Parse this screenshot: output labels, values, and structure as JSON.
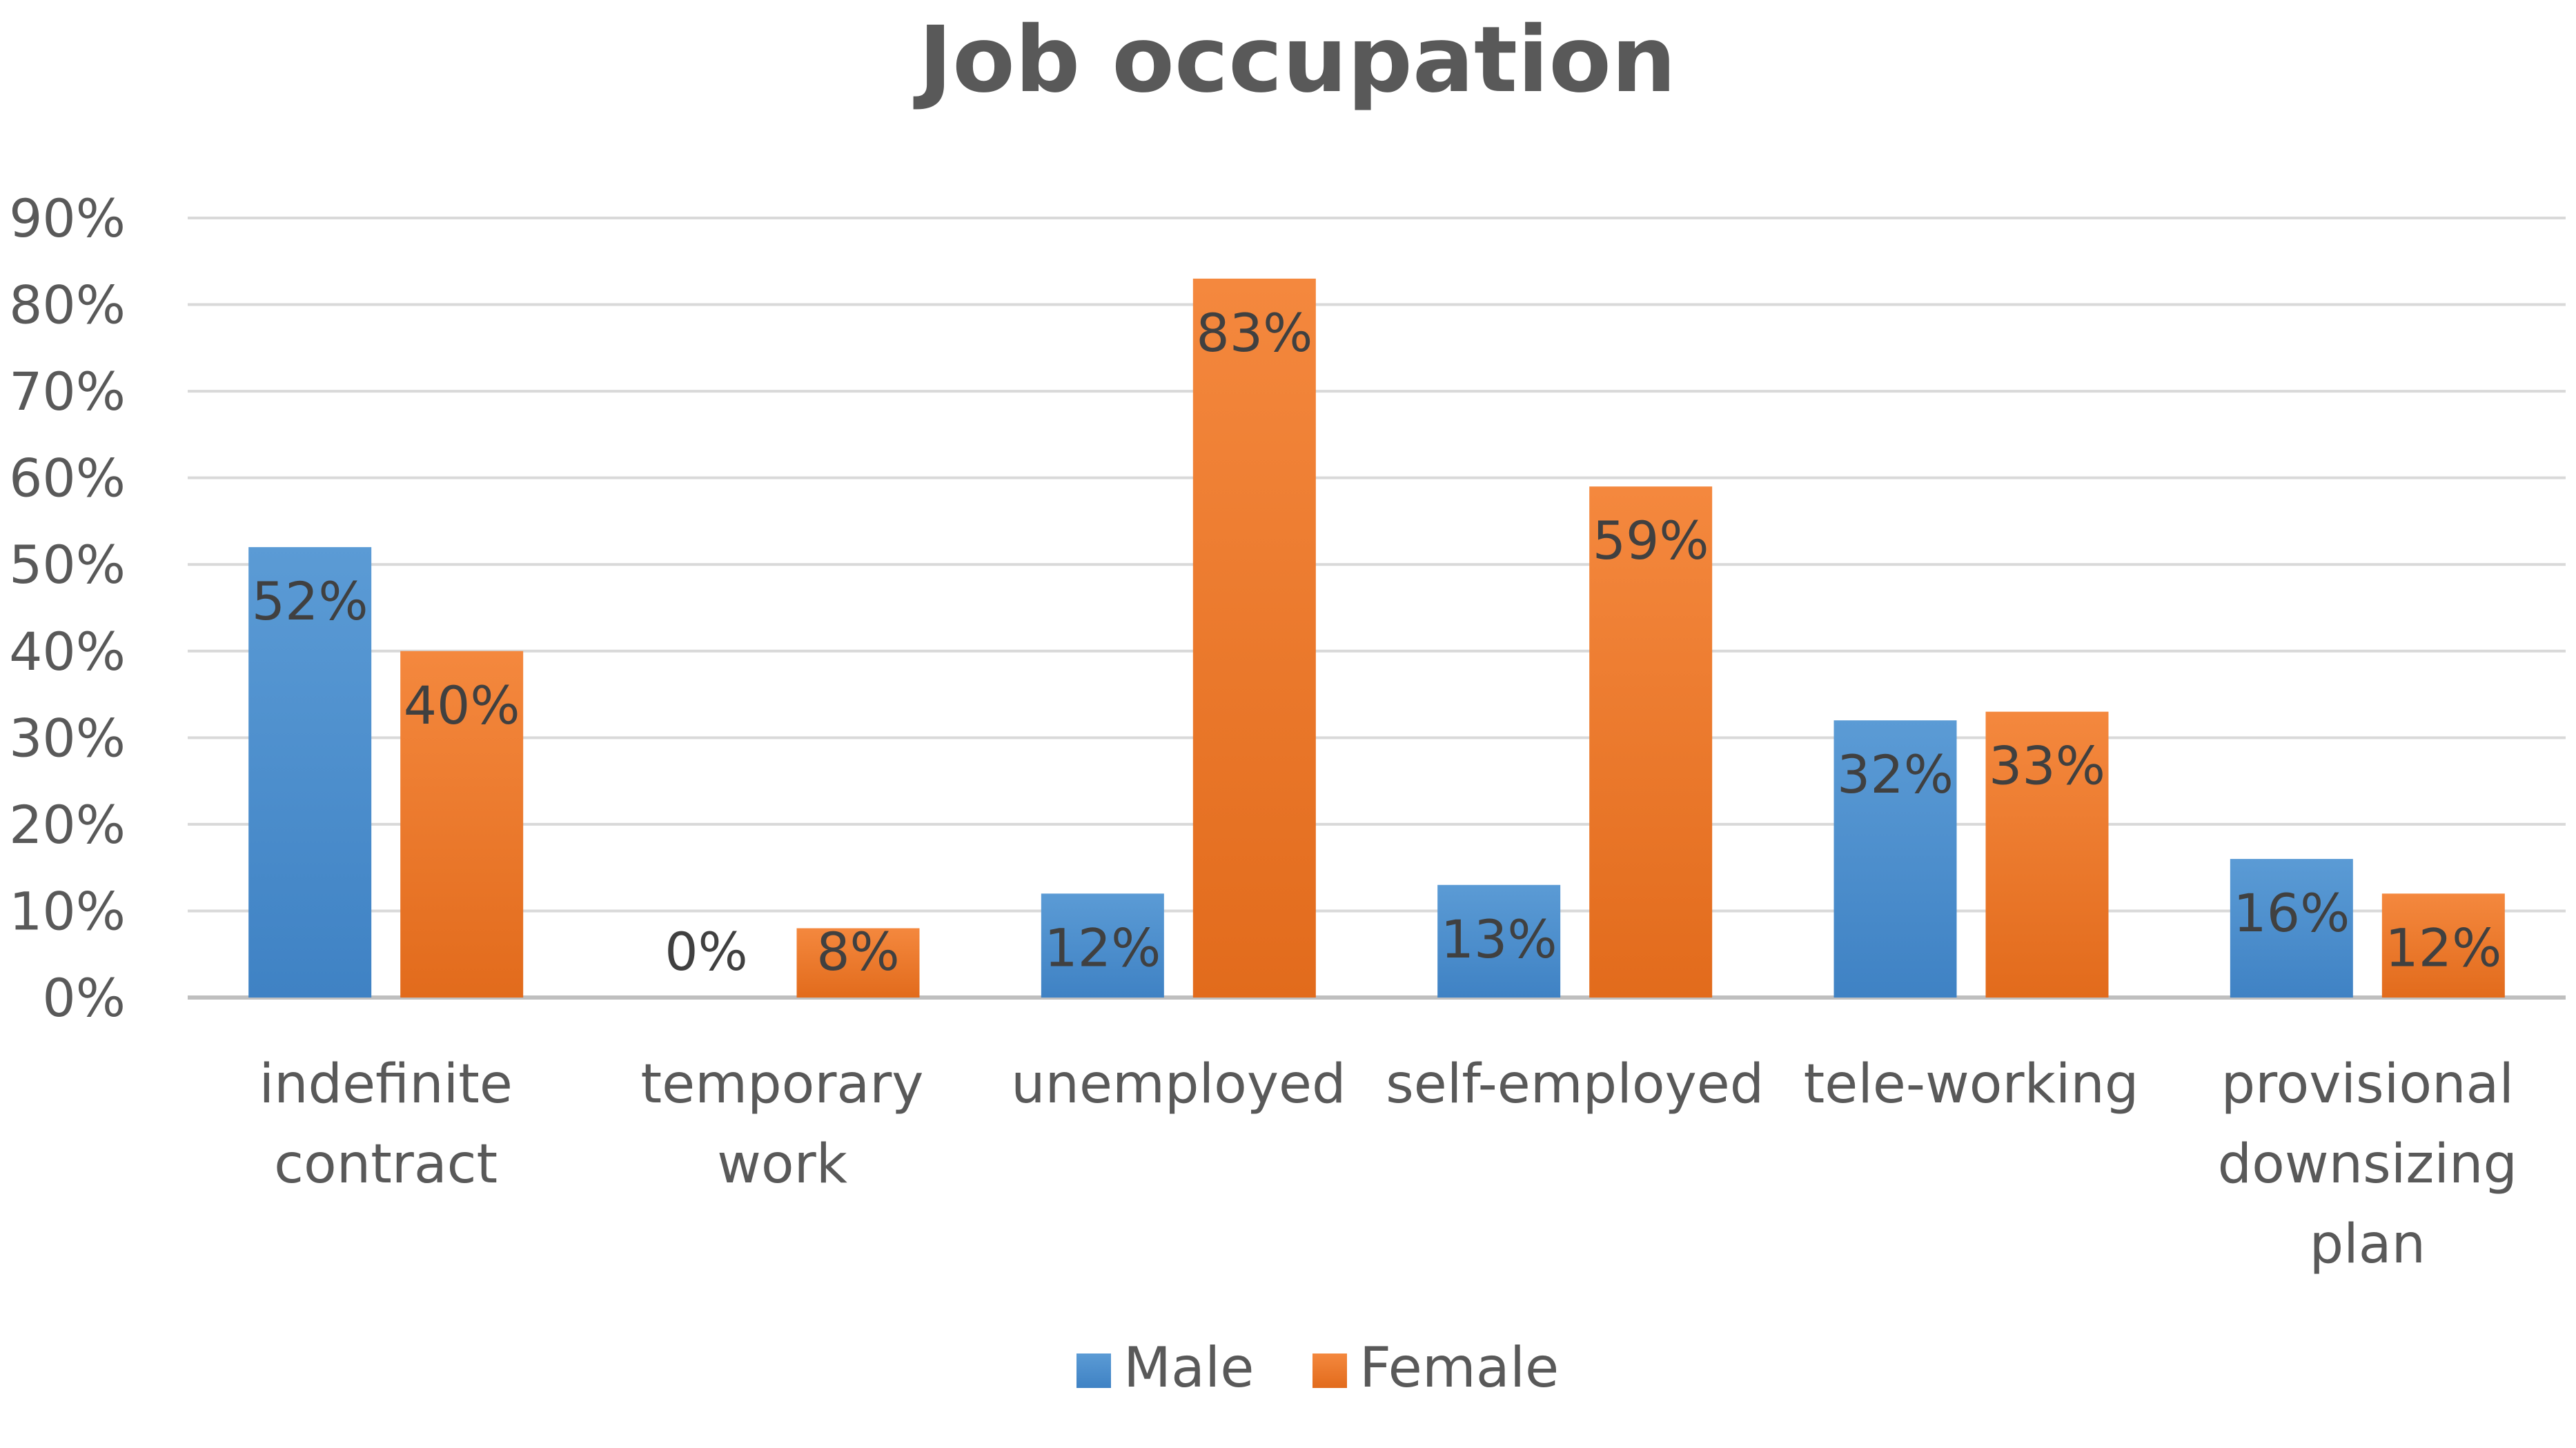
{
  "chart_data": {
    "type": "bar",
    "title": "Job occupation",
    "xlabel": "",
    "ylabel": "",
    "ylim": [
      0,
      90
    ],
    "yticks": [
      0,
      10,
      20,
      30,
      40,
      50,
      60,
      70,
      80,
      90
    ],
    "ytick_labels": [
      "0%",
      "10%",
      "20%",
      "30%",
      "40%",
      "50%",
      "60%",
      "70%",
      "80%",
      "90%"
    ],
    "grid": true,
    "legend_position": "bottom",
    "categories": [
      [
        "indefinite",
        "contract"
      ],
      [
        "temporary",
        "work"
      ],
      [
        "unemployed"
      ],
      [
        "self-employed"
      ],
      [
        "tele-working"
      ],
      [
        "provisional",
        "downsizing",
        "plan"
      ]
    ],
    "series": [
      {
        "name": "Male",
        "color": "#5b9bd5",
        "color_dark": "#3f82c4",
        "values": [
          52,
          0,
          12,
          13,
          32,
          16
        ],
        "labels": [
          "52%",
          "0%",
          "12%",
          "13%",
          "32%",
          "16%"
        ]
      },
      {
        "name": "Female",
        "color": "#f4883e",
        "color_dark": "#e26b1c",
        "values": [
          40,
          8,
          83,
          59,
          33,
          12
        ],
        "labels": [
          "40%",
          "8%",
          "83%",
          "59%",
          "33%",
          "12%"
        ]
      }
    ]
  }
}
